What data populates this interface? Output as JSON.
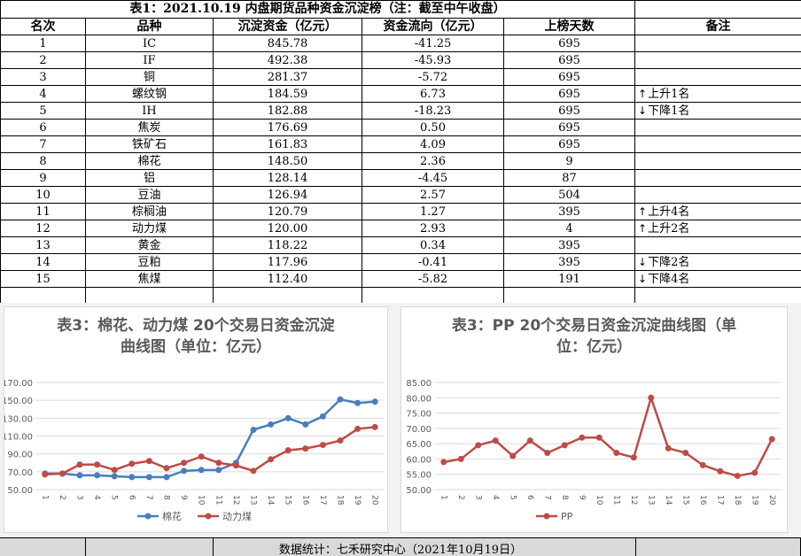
{
  "table": {
    "title": "表1：2021.10.19 内盘期货品种资金沉淀榜（注：截至中午收盘）",
    "headers": [
      "名次",
      "品种",
      "沉淀资金（亿元）",
      "资金流向（亿元）",
      "上榜天数",
      "备注"
    ],
    "rows": [
      {
        "rank": "1",
        "name": "IC",
        "capital": "845.78",
        "flow": "-41.25",
        "days": "695",
        "note": ""
      },
      {
        "rank": "2",
        "name": "IF",
        "capital": "492.38",
        "flow": "-45.93",
        "days": "695",
        "note": ""
      },
      {
        "rank": "3",
        "name": "铜",
        "capital": "281.37",
        "flow": "-5.72",
        "days": "695",
        "note": ""
      },
      {
        "rank": "4",
        "name": "螺纹钢",
        "capital": "184.59",
        "flow": "6.73",
        "days": "695",
        "note": "上升1名",
        "dir": "up"
      },
      {
        "rank": "5",
        "name": "IH",
        "capital": "182.88",
        "flow": "-18.23",
        "days": "695",
        "note": "下降1名",
        "dir": "down"
      },
      {
        "rank": "6",
        "name": "焦炭",
        "capital": "176.69",
        "flow": "0.50",
        "days": "695",
        "note": ""
      },
      {
        "rank": "7",
        "name": "铁矿石",
        "capital": "161.83",
        "flow": "4.09",
        "days": "695",
        "note": ""
      },
      {
        "rank": "8",
        "name": "棉花",
        "capital": "148.50",
        "flow": "2.36",
        "days": "9",
        "note": ""
      },
      {
        "rank": "9",
        "name": "铝",
        "capital": "128.14",
        "flow": "-4.45",
        "days": "87",
        "note": ""
      },
      {
        "rank": "10",
        "name": "豆油",
        "capital": "126.94",
        "flow": "2.57",
        "days": "504",
        "note": ""
      },
      {
        "rank": "11",
        "name": "棕榈油",
        "capital": "120.79",
        "flow": "1.27",
        "days": "395",
        "note": "上升4名",
        "dir": "up"
      },
      {
        "rank": "12",
        "name": "动力煤",
        "capital": "120.00",
        "flow": "2.93",
        "days": "4",
        "note": "上升2名",
        "dir": "up"
      },
      {
        "rank": "13",
        "name": "黄金",
        "capital": "118.22",
        "flow": "0.34",
        "days": "395",
        "note": ""
      },
      {
        "rank": "14",
        "name": "豆粕",
        "capital": "117.96",
        "flow": "-0.41",
        "days": "395",
        "note": "下降2名",
        "dir": "down"
      },
      {
        "rank": "15",
        "name": "焦煤",
        "capital": "112.40",
        "flow": "-5.82",
        "days": "191",
        "note": "下降4名",
        "dir": "down"
      }
    ]
  },
  "chart_data": [
    {
      "type": "line",
      "title": "表3：棉花、动力煤 20个交易日资金沉淀\n曲线图（单位：亿元）",
      "x": [
        "1",
        "2",
        "3",
        "4",
        "5",
        "6",
        "7",
        "8",
        "9",
        "10",
        "11",
        "12",
        "13",
        "14",
        "15",
        "16",
        "17",
        "18",
        "19",
        "20"
      ],
      "ylim": [
        50,
        170
      ],
      "yticks": [
        "50.00",
        "70.00",
        "90.00",
        "110.00",
        "130.00",
        "150.00",
        "170.00"
      ],
      "grid": true,
      "legend": "bottom",
      "series": [
        {
          "name": "棉花",
          "color": "#4a7ebb",
          "values": [
            68,
            68,
            66,
            66,
            65,
            64,
            64,
            64,
            71,
            72,
            72,
            80,
            117,
            123,
            130,
            123,
            132,
            151,
            147,
            148.5
          ]
        },
        {
          "name": "动力煤",
          "color": "#be4b48",
          "values": [
            67,
            68,
            78,
            78,
            72,
            79,
            82,
            74,
            80,
            87,
            80,
            77,
            71,
            84,
            94,
            96,
            100,
            105,
            118,
            120
          ]
        }
      ]
    },
    {
      "type": "line",
      "title": "表3：PP 20个交易日资金沉淀曲线图（单\n位：亿元）",
      "x": [
        "1",
        "2",
        "3",
        "4",
        "5",
        "6",
        "7",
        "8",
        "9",
        "10",
        "11",
        "12",
        "13",
        "14",
        "15",
        "16",
        "17",
        "18",
        "19",
        "20"
      ],
      "ylim": [
        50,
        85
      ],
      "yticks": [
        "50.00",
        "55.00",
        "60.00",
        "65.00",
        "70.00",
        "75.00",
        "80.00",
        "85.00"
      ],
      "grid": true,
      "legend": "bottom",
      "series": [
        {
          "name": "PP",
          "color": "#be4b48",
          "values": [
            59,
            60,
            64.5,
            66,
            61,
            66,
            62,
            64.5,
            67,
            67,
            62,
            60.5,
            80,
            63.5,
            62,
            58,
            56,
            54.5,
            55.5,
            66.5
          ]
        }
      ]
    }
  ],
  "footer": {
    "text": "数据统计：七禾研究中心（2021年10月19日）"
  },
  "colors": {
    "sheet_background": "#ffffff",
    "chart_area": "#f2f2f2",
    "footer": "#d9d9d9",
    "grid": "#d9d9d9",
    "title_text": "#595959"
  },
  "icons": {
    "up": "up-arrow-icon",
    "down": "down-arrow-icon"
  }
}
